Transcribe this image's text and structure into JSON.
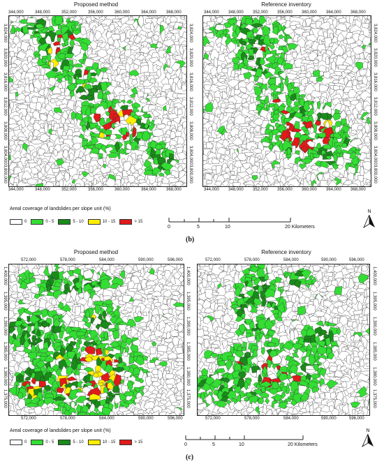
{
  "panel_b": {
    "left_title": "Proposed method",
    "right_title": "Reference inventory",
    "x_ticks": [
      "344,000",
      "348,000",
      "352,000",
      "356,000",
      "360,000",
      "364,000",
      "368,000"
    ],
    "y_ticks": [
      "3,824,000",
      "3,820,000",
      "3,816,000",
      "3,812,000",
      "3,808,000",
      "3,804,000",
      "3,800,000"
    ],
    "legend_title": "Areal coverage of landslides per slope unit (%)",
    "legend": [
      {
        "label": "0",
        "color": "#ffffff"
      },
      {
        "label": "0 - 5",
        "color": "#33dd33"
      },
      {
        "label": "5 - 10",
        "color": "#1a8a1a"
      },
      {
        "label": "10 - 15",
        "color": "#ffee00"
      },
      {
        "label": "> 15",
        "color": "#e01b1b"
      }
    ],
    "scale_ticks": [
      "0",
      "5",
      "10",
      "20 Kilometers"
    ],
    "north": "N",
    "label": "(b)"
  },
  "panel_c": {
    "left_title": "Proposed method",
    "right_title": "Reference inventory",
    "x_ticks": [
      "572,000",
      "578,000",
      "584,000",
      "590,000",
      "596,000"
    ],
    "y_ticks": [
      "1,400,000",
      "1,395,000",
      "1,390,000",
      "1,385,000",
      "1,380,000",
      "1,375,000"
    ],
    "legend_title": "Areal coverage of landslides per slope unit (%)",
    "legend": [
      {
        "label": "0",
        "color": "#ffffff"
      },
      {
        "label": "0 - 5",
        "color": "#33dd33"
      },
      {
        "label": "5 - 10",
        "color": "#1a8a1a"
      },
      {
        "label": "10 - 15",
        "color": "#ffee00"
      },
      {
        "label": "> 15",
        "color": "#e01b1b"
      }
    ],
    "scale_ticks": [
      "0",
      "5",
      "10",
      "20 Kilometers"
    ],
    "north": "N",
    "label": "(c)"
  }
}
